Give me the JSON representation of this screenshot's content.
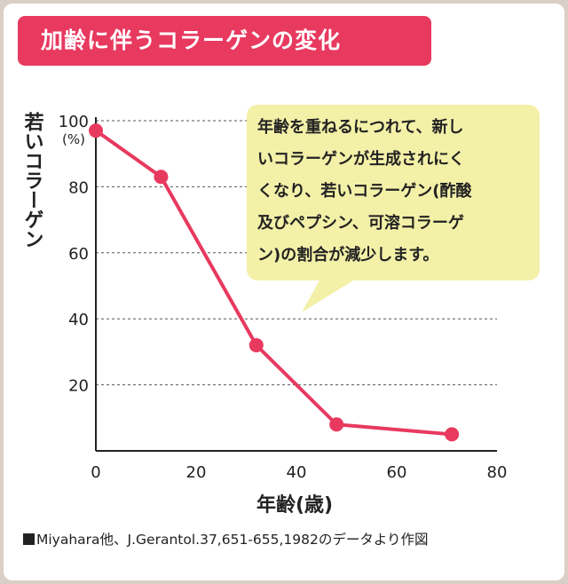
{
  "title": "加齢に伴うコラーゲンの変化",
  "colors": {
    "accent": "#e8395f",
    "callout_bg": "#f3f0a8",
    "axis": "#222222",
    "grid": "#555555"
  },
  "callout_lines": [
    "年齢を重ねるにつれて、新し",
    "いコラーゲンが生成されにく",
    "くなり、若いコラーゲン(酢酸",
    "及びペプシン、可溶コラーゲ",
    "ン)の割合が減少します。"
  ],
  "source": "Miyahara他、J.Gerantol.37,651-655,1982のデータより作図",
  "chart_data": {
    "type": "line",
    "title": "加齢に伴うコラーゲンの変化",
    "xlabel": "年齢(歳)",
    "ylabel": "若いコラーゲン",
    "yunit": "(%)",
    "xlim": [
      0,
      80
    ],
    "ylim": [
      0,
      100
    ],
    "xticks": [
      0,
      20,
      40,
      60,
      80
    ],
    "yticks": [
      20,
      40,
      60,
      80,
      100
    ],
    "grid": "horizontal-dashed",
    "series": [
      {
        "x": [
          0,
          13,
          32,
          48,
          71
        ],
        "y": [
          97,
          83,
          32,
          8,
          5
        ]
      }
    ]
  }
}
